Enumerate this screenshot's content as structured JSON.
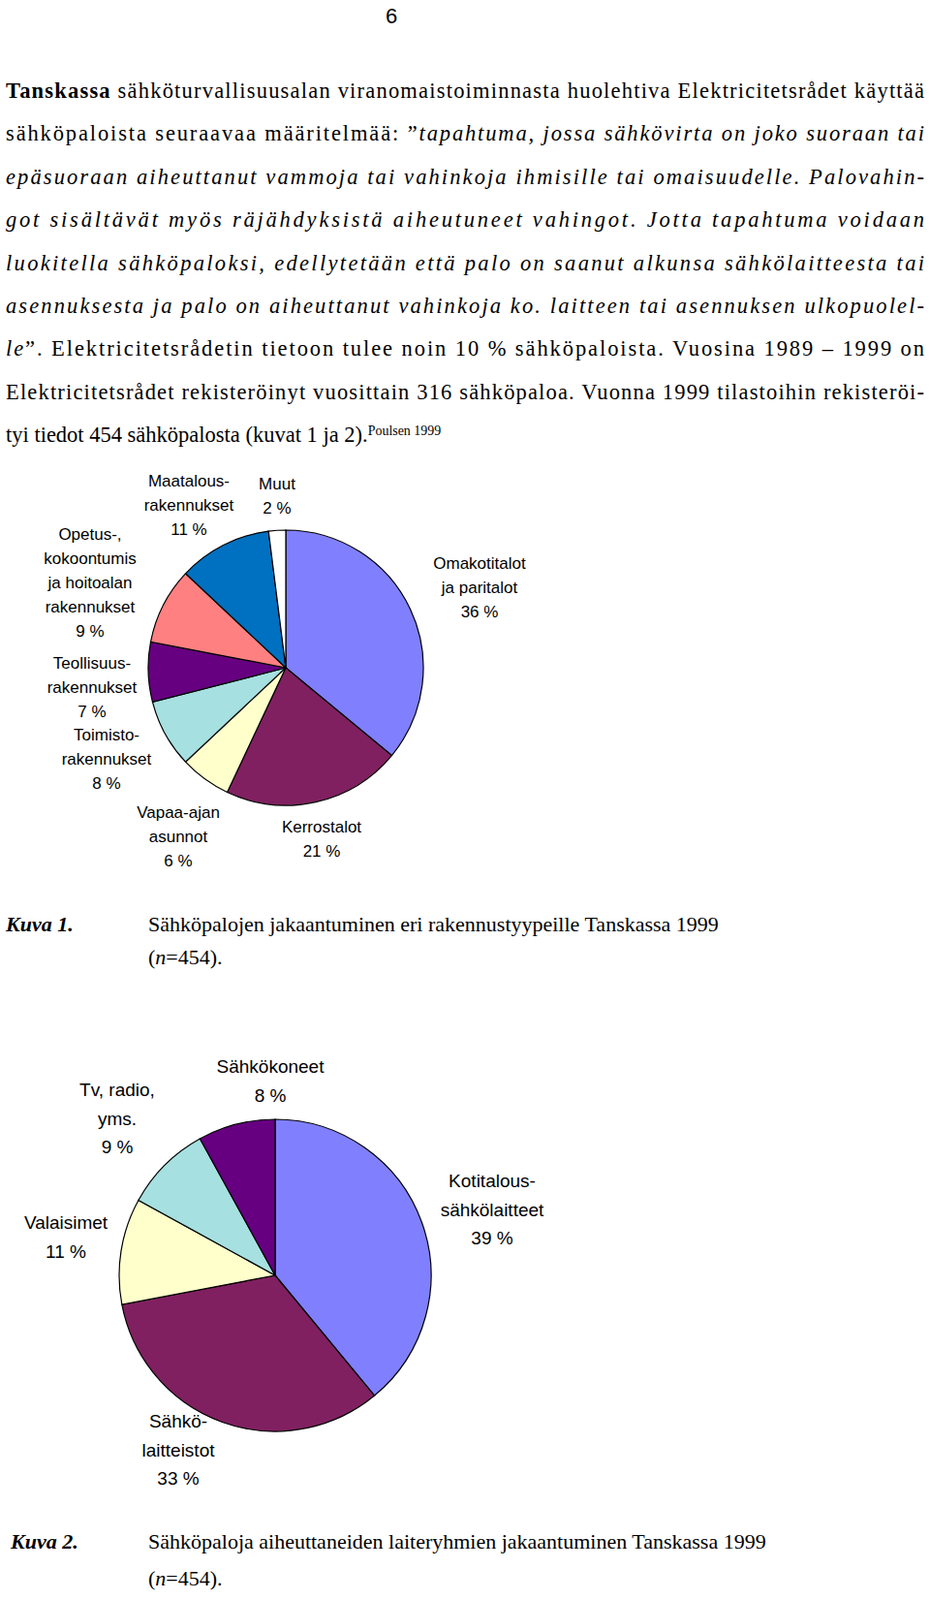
{
  "page": {
    "number": "6",
    "paragraph": [
      [
        {
          "text": "Tanskassa",
          "style": "bold"
        },
        {
          "text": " sähköturvallisuusalan viranomaistoiminnasta huolehtiva Elektricitetsrådet käyttää"
        }
      ],
      [
        {
          "text": "sähköpaloista seuraavaa määritelmää: ”"
        },
        {
          "text": "tapahtuma, jossa sähkövirta on joko suoraan tai",
          "style": "italic"
        }
      ],
      [
        {
          "text": "epäsuoraan aiheuttanut vammoja tai vahinkoja ihmisille tai omaisuudelle. Palovahin-",
          "style": "italic"
        }
      ],
      [
        {
          "text": "got sisältävät myös räjähdyksistä aiheutuneet vahingot. Jotta tapahtuma voidaan",
          "style": "italic"
        }
      ],
      [
        {
          "text": "luokitella sähköpaloksi, edellytetään että palo on saanut alkunsa sähkölaitteesta tai",
          "style": "italic"
        }
      ],
      [
        {
          "text": "asennuksesta ja palo on aiheuttanut vahinkoja ko. laitteen tai asennuksen ulkopuolel-",
          "style": "italic"
        }
      ],
      [
        {
          "text": "le",
          "style": "italic"
        },
        {
          "text": "”. Elektricitetsrådetin tietoon tulee noin 10 % sähköpaloista. Vuosina 1989 – 1999 on"
        }
      ],
      [
        {
          "text": "Elektricitetsrådet rekisteröinyt vuosittain 316 sähköpaloa. Vuonna 1999 tilastoihin rekisteröi-"
        }
      ],
      [
        {
          "text": "tyi tiedot 454 sähköpalosta (kuvat 1 ja 2)."
        },
        {
          "text": "Poulsen 1999",
          "style": "superscript"
        }
      ]
    ]
  },
  "figures": [
    {
      "label": "Kuva 1.",
      "caption": [
        [
          {
            "text": "Sähköpalojen jakaantuminen eri rakennustyypeille Tanskassa 1999"
          }
        ],
        [
          {
            "text": "("
          },
          {
            "text": "n",
            "style": "italic"
          },
          {
            "text": "=454)."
          }
        ]
      ]
    },
    {
      "label": "Kuva 2.",
      "caption": [
        [
          {
            "text": "Sähköpaloja aiheuttaneiden laiteryhmien jakaantuminen Tanskassa 1999"
          }
        ],
        [
          {
            "text": "("
          },
          {
            "text": "n",
            "style": "italic"
          },
          {
            "text": "=454)."
          }
        ]
      ]
    }
  ],
  "chart_data": [
    {
      "type": "pie",
      "categories": [
        "Omakotitalot\nja paritalot",
        "Kerrostalot",
        "Vapaa-ajan\nasunnot",
        "Toimisto-\nrakennukset",
        "Teollisuus-\nrakennukset",
        "Opetus-,\nkokoontumis\nja hoitoalan\nrakennukset",
        "Maatalous-\nrakennukset",
        "Muut"
      ],
      "values": [
        36,
        21,
        6,
        8,
        7,
        9,
        11,
        2
      ],
      "value_labels": [
        "36 %",
        "21 %",
        "6 %",
        "8 %",
        "7 %",
        "9 %",
        "11 %",
        "2 %"
      ],
      "colors": [
        "#8080ff",
        "#802060",
        "#ffffcc",
        "#a6e0e0",
        "#660080",
        "#ff8080",
        "#0070c0",
        "#ffffff"
      ],
      "data_labels": true
    },
    {
      "type": "pie",
      "categories": [
        "Kotitalous-\nsähkölaitteet",
        "Sähkö-\nlaitteistot",
        "Valaisimet",
        "Tv, radio,\nyms.",
        "Sähkökoneet"
      ],
      "values": [
        39,
        33,
        11,
        9,
        8
      ],
      "value_labels": [
        "39 %",
        "33 %",
        "11 %",
        "9 %",
        "8 %"
      ],
      "colors": [
        "#8080ff",
        "#802060",
        "#ffffcc",
        "#a6e0e0",
        "#660080"
      ],
      "data_labels": true
    }
  ]
}
